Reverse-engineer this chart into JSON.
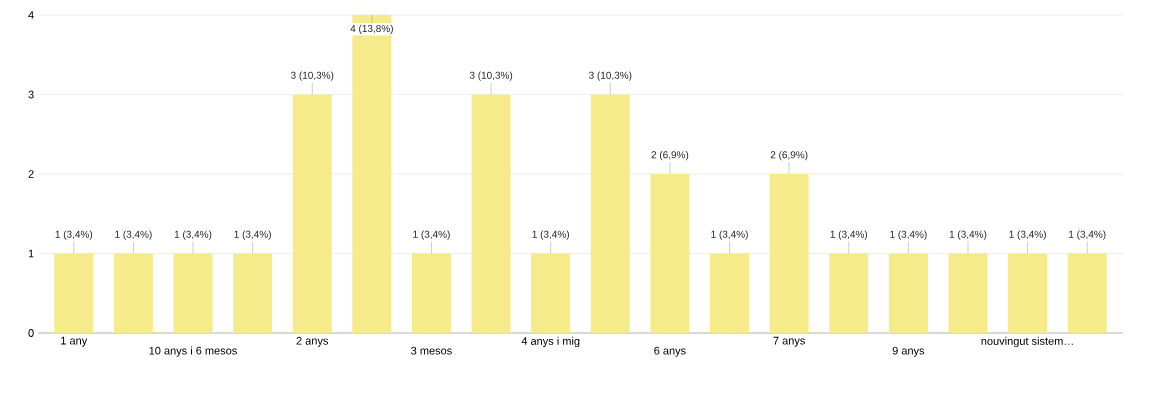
{
  "chart_data": {
    "type": "bar",
    "categories": [
      "1 any",
      null,
      "10 anys i 6 mesos",
      null,
      "2 anys",
      null,
      "3 mesos",
      null,
      "4 anys i mig",
      null,
      "6 anys",
      null,
      "7 anys",
      null,
      "9 anys",
      null,
      "nouvingut sistem…",
      null
    ],
    "values": [
      1,
      1,
      1,
      1,
      3,
      4,
      1,
      3,
      1,
      3,
      2,
      1,
      2,
      1,
      1,
      1,
      1,
      1
    ],
    "value_labels": [
      "1 (3,4%)",
      "1 (3,4%)",
      "1 (3,4%)",
      "1 (3,4%)",
      "3 (10,3%)",
      "4 (13,8%)",
      "1 (3,4%)",
      "3 (10,3%)",
      "1 (3,4%)",
      "3 (10,3%)",
      "2 (6,9%)",
      "1 (3,4%)",
      "2 (6,9%)",
      "1 (3,4%)",
      "1 (3,4%)",
      "1 (3,4%)",
      "1 (3,4%)",
      "1 (3,4%)"
    ],
    "color": "#f6eb8a",
    "ylim": [
      0,
      4
    ],
    "yticks": [
      0,
      1,
      2,
      3,
      4
    ],
    "grid": "y"
  }
}
